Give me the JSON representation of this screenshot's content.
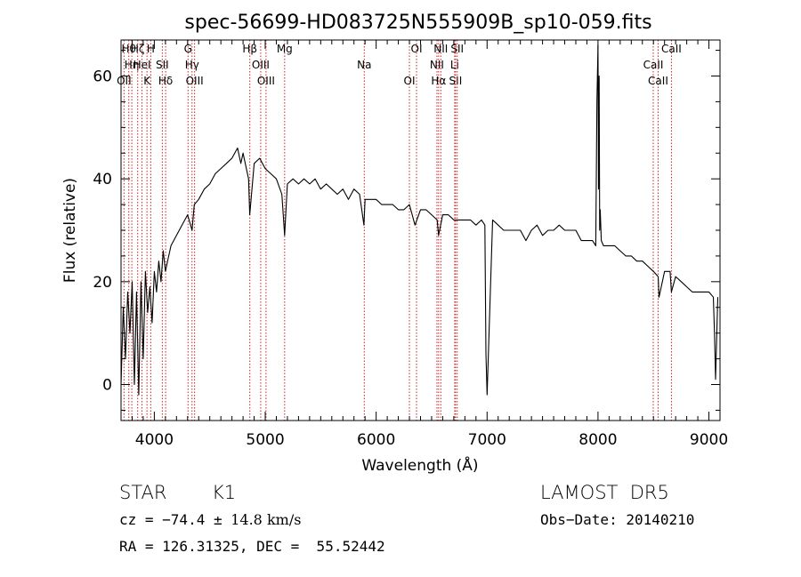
{
  "chart_data": {
    "type": "line",
    "title": "spec-56699-HD083725N555909B_sp10-059.fits",
    "xlabel": "Wavelength (Å)",
    "ylabel": "Flux (relative)",
    "xlim": [
      3700,
      9100
    ],
    "ylim": [
      -7,
      67
    ],
    "x_ticks": [
      4000,
      5000,
      6000,
      7000,
      8000,
      9000
    ],
    "y_ticks": [
      0,
      20,
      40,
      60
    ],
    "grid": false,
    "series": [
      {
        "x": [
          3700,
          3720,
          3740,
          3760,
          3780,
          3800,
          3820,
          3840,
          3860,
          3880,
          3900,
          3920,
          3940,
          3960,
          3980,
          4000,
          4020,
          4040,
          4060,
          4080,
          4100,
          4120,
          4150,
          4200,
          4250,
          4300,
          4340,
          4360,
          4400,
          4450,
          4500,
          4550,
          4600,
          4650,
          4700,
          4750,
          4780,
          4800,
          4850,
          4860,
          4900,
          4950,
          5000,
          5050,
          5100,
          5150,
          5175,
          5200,
          5250,
          5300,
          5350,
          5400,
          5450,
          5500,
          5550,
          5600,
          5650,
          5700,
          5750,
          5800,
          5850,
          5890,
          5900,
          5950,
          6000,
          6050,
          6100,
          6150,
          6200,
          6250,
          6300,
          6350,
          6400,
          6450,
          6500,
          6550,
          6563,
          6600,
          6650,
          6700,
          6750,
          6800,
          6850,
          6900,
          6950,
          6980,
          6990,
          7000,
          7050,
          7100,
          7150,
          7200,
          7250,
          7300,
          7350,
          7400,
          7450,
          7500,
          7550,
          7600,
          7650,
          7700,
          7750,
          7800,
          7850,
          7900,
          7950,
          7980,
          7990,
          8000,
          8005,
          8010,
          8015,
          8020,
          8030,
          8050,
          8100,
          8150,
          8200,
          8250,
          8300,
          8350,
          8400,
          8450,
          8500,
          8542,
          8550,
          8600,
          8650,
          8662,
          8700,
          8750,
          8800,
          8850,
          8900,
          8950,
          9000,
          9040,
          9050,
          9060,
          9080
        ],
        "y": [
          0,
          15,
          5,
          18,
          10,
          20,
          0,
          18,
          -2,
          20,
          5,
          22,
          14,
          19,
          12,
          22,
          18,
          24,
          20,
          26,
          22,
          24,
          27,
          29,
          31,
          33,
          30,
          35,
          36,
          38,
          39,
          41,
          42,
          43,
          44,
          46,
          43,
          45,
          40,
          33,
          43,
          44,
          42,
          41,
          40,
          37,
          29,
          39,
          40,
          39,
          40,
          39,
          40,
          38,
          39,
          38,
          37,
          38,
          36,
          38,
          37,
          31,
          36,
          36,
          36,
          35,
          35,
          35,
          34,
          34,
          35,
          31,
          34,
          34,
          33,
          32,
          29,
          33,
          33,
          32,
          32,
          32,
          32,
          31,
          32,
          31,
          6,
          -2,
          32,
          31,
          30,
          30,
          30,
          30,
          28,
          30,
          31,
          29,
          30,
          30,
          31,
          30,
          30,
          30,
          28,
          28,
          28,
          27,
          55,
          66,
          38,
          60,
          30,
          34,
          28,
          27,
          27,
          27,
          26,
          25,
          25,
          24,
          24,
          23,
          22,
          21,
          17,
          22,
          22,
          18,
          21,
          20,
          19,
          18,
          18,
          18,
          18,
          17,
          10,
          1,
          17
        ]
      }
    ],
    "line_markers": [
      {
        "wavelength": 3770,
        "label": "Hθ"
      },
      {
        "wavelength": 3797,
        "label": "Hη"
      },
      {
        "wavelength": 3727,
        "label": "OII"
      },
      {
        "wavelength": 3850,
        "label": "Hζ"
      },
      {
        "wavelength": 3889,
        "label": "HeI"
      },
      {
        "wavelength": 3934,
        "label": "K"
      },
      {
        "wavelength": 3968,
        "label": "H"
      },
      {
        "wavelength": 4072,
        "label": "SII"
      },
      {
        "wavelength": 4102,
        "label": "Hδ"
      },
      {
        "wavelength": 4304,
        "label": "G"
      },
      {
        "wavelength": 4340,
        "label": "Hγ"
      },
      {
        "wavelength": 4363,
        "label": "OIII"
      },
      {
        "wavelength": 4861,
        "label": "Hβ"
      },
      {
        "wavelength": 4959,
        "label": "OIII"
      },
      {
        "wavelength": 5007,
        "label": "OIII"
      },
      {
        "wavelength": 5175,
        "label": "Mg"
      },
      {
        "wavelength": 5893,
        "label": "Na"
      },
      {
        "wavelength": 6300,
        "label": "OI"
      },
      {
        "wavelength": 6364,
        "label": "OI"
      },
      {
        "wavelength": 6548,
        "label": "NII"
      },
      {
        "wavelength": 6563,
        "label": "Hα"
      },
      {
        "wavelength": 6583,
        "label": "NII"
      },
      {
        "wavelength": 6708,
        "label": "Li"
      },
      {
        "wavelength": 6716,
        "label": "SII"
      },
      {
        "wavelength": 6731,
        "label": "SII"
      },
      {
        "wavelength": 8498,
        "label": "CaII"
      },
      {
        "wavelength": 8542,
        "label": "CaII"
      },
      {
        "wavelength": 8662,
        "label": "CaII"
      }
    ]
  },
  "footer": {
    "object_class": "STAR",
    "subclass": "K1",
    "survey": "LAMOST  DR5",
    "cz_prefix": "cz = −74.4 ± ",
    "cz_err": "14.8",
    "cz_unit": " km/s",
    "obs_date": "Obs−Date: 20140210",
    "coords": "RA = 126.31325, DEC =  55.52442"
  },
  "colors": {
    "spectrum": "#000000",
    "marker_line": "#cc2222",
    "axes": "#000000"
  }
}
